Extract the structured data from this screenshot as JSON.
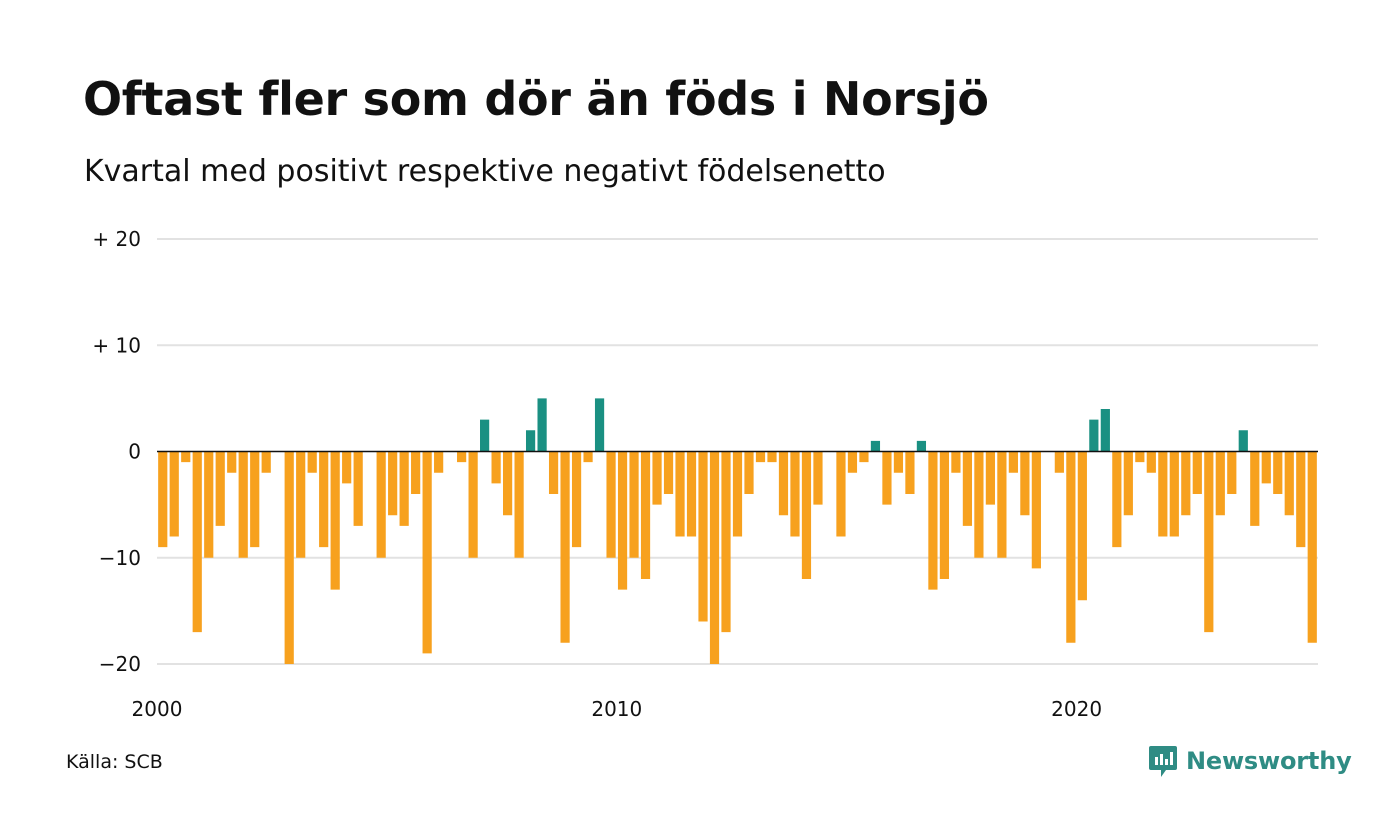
{
  "header": {
    "title": "Oftast fler som dör än föds i Norsjö",
    "subtitle": "Kvartal med positivt respektive negativt födelsenetto"
  },
  "footer": {
    "source": "Källa: SCB",
    "brand": "Newsworthy"
  },
  "colors": {
    "positive": "#1a9082",
    "negative": "#f7a11e",
    "gridline": "#e2e2e2",
    "zeroline": "#111111",
    "brand": "#2f8c84"
  },
  "chart_data": {
    "type": "bar",
    "title": "Oftast fler som dör än föds i Norsjö",
    "subtitle": "Kvartal med positivt respektive negativt födelsenetto",
    "xlabel": "",
    "ylabel": "",
    "ylim": [
      -20,
      20
    ],
    "yticks": [
      {
        "value": 20,
        "label": "+ 20"
      },
      {
        "value": 10,
        "label": "+ 10"
      },
      {
        "value": 0,
        "label": "0"
      },
      {
        "value": -10,
        "label": "−10"
      },
      {
        "value": -20,
        "label": "−20"
      }
    ],
    "xticks": [
      {
        "value": 2000,
        "label": "2000"
      },
      {
        "value": 2010,
        "label": "2010"
      },
      {
        "value": 2020,
        "label": "2020"
      }
    ],
    "x_start_quarter": "2000 Q1",
    "grid": true,
    "legend": "none",
    "values": [
      -9,
      -8,
      -1,
      -17,
      -10,
      -7,
      -2,
      -10,
      -9,
      -2,
      0,
      -20,
      -10,
      -2,
      -9,
      -13,
      -3,
      -7,
      0,
      -10,
      -6,
      -7,
      -4,
      -19,
      -2,
      0,
      -1,
      -10,
      3,
      -3,
      -6,
      -10,
      2,
      5,
      -4,
      -18,
      -9,
      -1,
      5,
      -10,
      -13,
      -10,
      -12,
      -5,
      -4,
      -8,
      -8,
      -16,
      -20,
      -17,
      -8,
      -4,
      -1,
      -1,
      -6,
      -8,
      -12,
      -5,
      0,
      -8,
      -2,
      -1,
      1,
      -5,
      -2,
      -4,
      1,
      -13,
      -12,
      -2,
      -7,
      -10,
      -5,
      -10,
      -2,
      -6,
      -11,
      0,
      -2,
      -18,
      -14,
      3,
      4,
      -9,
      -6,
      -1,
      -2,
      -8,
      -8,
      -6,
      -4,
      -17,
      -6,
      -4,
      2,
      -7,
      -3,
      -4,
      -6,
      -9,
      -18
    ]
  }
}
